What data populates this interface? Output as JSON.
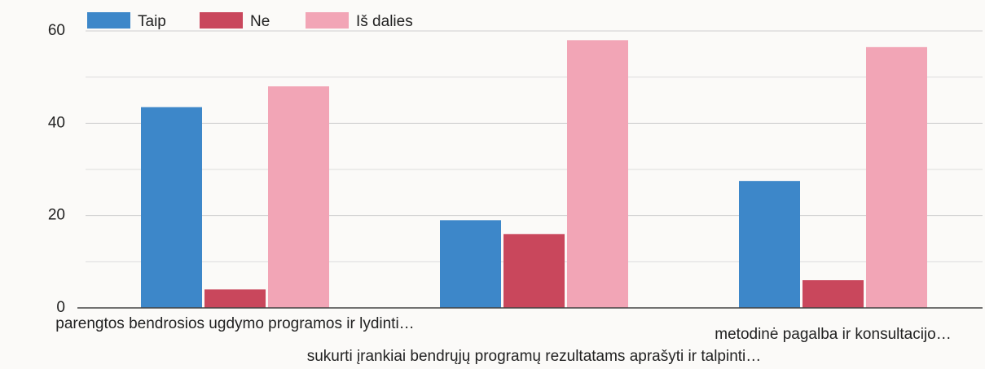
{
  "chart_data": {
    "type": "bar",
    "categories": [
      "parengtos bendrosios ugdymo programos ir lydinti…",
      "sukurti įrankiai bendrųjų programų rezultatams aprašyti ir talpinti…",
      "metodinė pagalba ir konsultacijo…"
    ],
    "series": [
      {
        "name": "Taip",
        "color": "#3d87c9",
        "values": [
          43.5,
          19,
          27.5
        ]
      },
      {
        "name": "Ne",
        "color": "#c9475c",
        "values": [
          4,
          16,
          6
        ]
      },
      {
        "name": "Iš dalies",
        "color": "#f2a5b6",
        "values": [
          48,
          58,
          56.5
        ]
      }
    ],
    "ylim": [
      0,
      60
    ],
    "yticks": [
      0,
      20,
      40,
      60
    ],
    "minor_yticks": [
      10,
      30,
      50
    ],
    "grid": true,
    "legend": "top-left"
  }
}
